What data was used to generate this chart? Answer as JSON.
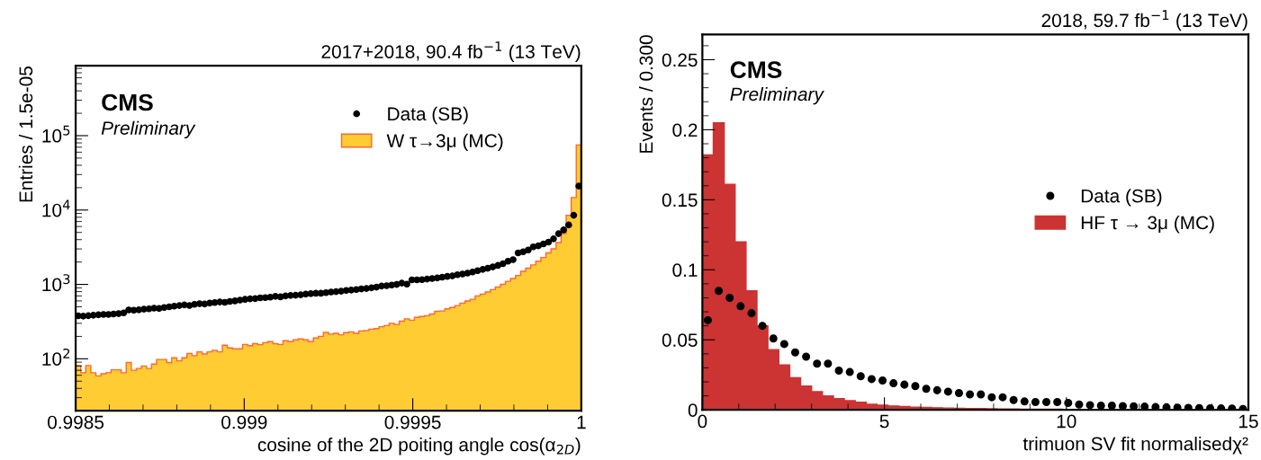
{
  "chart_data": [
    {
      "type": "histogram",
      "title": "2017+2018, 90.4 fb$^{−1}$ (13 TeV)",
      "xlabel": "cosine of the 2D poiting angle cos(α$_{2D}$)",
      "ylabel": "Entries / 1.5e-05",
      "annotations": [
        "CMS",
        "Preliminary"
      ],
      "log": "y",
      "legend": "top right",
      "marker": "circle",
      "xlim": [
        0.9985,
        1
      ],
      "ylim": [
        20,
        870000
      ],
      "xticks": [
        0.9985,
        {
          "value": 0.9986,
          "label": null
        },
        {
          "value": 0.9987,
          "label": null
        },
        {
          "value": 0.9988,
          "label": null
        },
        {
          "value": 0.9989,
          "label": null
        },
        0.999,
        {
          "value": 0.9991,
          "label": null
        },
        {
          "value": 0.9992,
          "label": null
        },
        {
          "value": 0.9993,
          "label": null
        },
        {
          "value": 0.9994,
          "label": null
        },
        0.9995,
        {
          "value": 0.9996,
          "label": null
        },
        {
          "value": 0.9997,
          "label": null
        },
        {
          "value": 0.9998,
          "label": null
        },
        {
          "value": 0.9999,
          "label": null
        },
        1
      ],
      "yticks": [
        {
          "value": 100,
          "label": "10$^{2}$"
        },
        {
          "value": 1000,
          "label": "10$^{3}$"
        },
        {
          "value": 10000,
          "label": "10$^{4}$"
        },
        {
          "value": 100000,
          "label": "10$^{5}$"
        }
      ],
      "series": [
        {
          "name": "W τ→3μ (MC)",
          "color": "#ffcc33",
          "bins": [
            0.9985,
            0.998515,
            0.99853,
            0.998545,
            0.99856,
            0.998575,
            0.99859,
            0.998605,
            0.99862,
            0.998635,
            0.99865,
            0.998665,
            0.99868,
            0.998695,
            0.99871,
            0.998725,
            0.99874,
            0.998755,
            0.99877,
            0.998785,
            0.9988,
            0.998815,
            0.99883,
            0.998845,
            0.99886,
            0.998875,
            0.99889,
            0.998905,
            0.99892,
            0.998935,
            0.99895,
            0.998965,
            0.99898,
            0.998995,
            0.99901,
            0.999025,
            0.99904,
            0.999055,
            0.99907,
            0.999085,
            0.9991,
            0.999115,
            0.99913,
            0.999145,
            0.99916,
            0.999175,
            0.99919,
            0.999205,
            0.99922,
            0.999235,
            0.99925,
            0.999265,
            0.99928,
            0.999295,
            0.99931,
            0.999325,
            0.99934,
            0.999355,
            0.99937,
            0.999385,
            0.9994,
            0.999415,
            0.99943,
            0.999445,
            0.99946,
            0.999475,
            0.99949,
            0.999505,
            0.99952,
            0.999535,
            0.99955,
            0.999565,
            0.99958,
            0.999595,
            0.99961,
            0.999625,
            0.99964,
            0.999655,
            0.99967,
            0.999685,
            0.9997,
            0.999715,
            0.99973,
            0.999745,
            0.99976,
            0.999775,
            0.99979,
            0.999805,
            0.99982,
            0.999835,
            0.99985,
            0.999865,
            0.99988,
            0.999895,
            0.99991,
            0.999925,
            0.99994,
            0.999955,
            0.99997,
            0.999985,
            1
          ],
          "values": [
            81,
            65,
            81,
            65,
            59,
            63,
            65,
            71,
            71,
            65,
            89,
            70,
            74,
            80,
            74,
            85,
            98,
            98,
            89,
            103,
            94,
            103,
            118,
            110,
            124,
            116,
            124,
            130,
            124,
            152,
            140,
            136,
            136,
            156,
            150,
            160,
            155,
            165,
            170,
            160,
            156,
            175,
            170,
            180,
            185,
            180,
            170,
            190,
            200,
            226,
            215,
            220,
            210,
            225,
            230,
            220,
            237,
            240,
            250,
            255,
            270,
            280,
            300,
            290,
            320,
            345,
            330,
            360,
            370,
            380,
            400,
            435,
            440,
            470,
            490,
            520,
            560,
            600,
            630,
            700,
            740,
            790,
            850,
            920,
            1000,
            1100,
            1200,
            1320,
            1500,
            1650,
            1830,
            2050,
            2300,
            2650,
            3000,
            3650,
            4800,
            8500,
            14700,
            75000
          ]
        },
        {
          "name": "Data (SB)",
          "type": "scatter",
          "color": "#000000",
          "x": [
            0.9985075,
            0.9985225,
            0.9985375,
            0.9985525,
            0.9985675,
            0.9985825,
            0.9985975,
            0.9986125,
            0.9986275,
            0.9986425,
            0.9986575,
            0.9986725,
            0.9986875,
            0.9987025,
            0.9987175,
            0.9987325,
            0.9987475,
            0.9987625,
            0.9987775,
            0.9987925,
            0.9988075,
            0.9988225,
            0.9988375,
            0.9988525,
            0.9988675,
            0.9988825,
            0.9988975,
            0.9989125,
            0.9989275,
            0.9989425,
            0.9989575,
            0.9989725,
            0.9989875,
            0.9990025,
            0.9990175,
            0.9990325,
            0.9990475,
            0.9990625,
            0.9990775,
            0.9990925,
            0.9991075,
            0.9991225,
            0.9991375,
            0.9991525,
            0.9991675,
            0.9991825,
            0.9991975,
            0.9992125,
            0.9992275,
            0.9992425,
            0.9992575,
            0.9992725,
            0.9992875,
            0.9993025,
            0.9993175,
            0.9993325,
            0.9993475,
            0.9993625,
            0.9993775,
            0.9993925,
            0.9994075,
            0.9994225,
            0.9994375,
            0.9994525,
            0.9994675,
            0.9994825,
            0.9994975,
            0.9995125,
            0.9995275,
            0.9995425,
            0.9995575,
            0.9995725,
            0.9995875,
            0.9996025,
            0.9996175,
            0.9996325,
            0.9996475,
            0.9996625,
            0.9996775,
            0.9996925,
            0.9997075,
            0.9997225,
            0.9997375,
            0.9997525,
            0.9997675,
            0.9997825,
            0.9997975,
            0.9998125,
            0.9998275,
            0.9998425,
            0.9998575,
            0.9998725,
            0.9998875,
            0.9999025,
            0.9999175,
            0.9999325,
            0.9999475,
            0.9999625,
            0.9999775,
            0.9999925
          ],
          "values": [
            378,
            375,
            380,
            385,
            390,
            395,
            395,
            400,
            405,
            414,
            454,
            450,
            455,
            465,
            470,
            480,
            475,
            490,
            500,
            510,
            520,
            530,
            520,
            540,
            550,
            545,
            560,
            570,
            580,
            575,
            590,
            600,
            615,
            630,
            640,
            645,
            660,
            665,
            675,
            690,
            680,
            700,
            710,
            715,
            725,
            740,
            750,
            760,
            760,
            775,
            790,
            800,
            810,
            830,
            840,
            855,
            870,
            880,
            900,
            920,
            950,
            960,
            980,
            1000,
            1040,
            1010,
            1150,
            1150,
            1160,
            1180,
            1200,
            1220,
            1250,
            1280,
            1300,
            1350,
            1380,
            1420,
            1470,
            1530,
            1590,
            1650,
            1720,
            1800,
            1900,
            2050,
            2150,
            2650,
            2750,
            2900,
            3200,
            3300,
            3500,
            3700,
            4100,
            4800,
            5400,
            6300,
            8500,
            21000
          ]
        }
      ]
    },
    {
      "type": "histogram",
      "title": "2018, 59.7 fb$^{−1}$ (13 TeV)",
      "xlabel": "trimuon SV fit normalisedχ²",
      "ylabel": "Events / 0.300",
      "annotations": [
        "CMS",
        "Preliminary"
      ],
      "legend": "right",
      "marker": "circle",
      "xlim": [
        0,
        15
      ],
      "ylim": [
        0,
        0.268
      ],
      "xticks": [
        0,
        {
          "value": 1,
          "label": null
        },
        {
          "value": 2,
          "label": null
        },
        {
          "value": 3,
          "label": null
        },
        {
          "value": 4,
          "label": null
        },
        5,
        {
          "value": 6,
          "label": null
        },
        {
          "value": 7,
          "label": null
        },
        {
          "value": 8,
          "label": null
        },
        {
          "value": 9,
          "label": null
        },
        10,
        {
          "value": 11,
          "label": null
        },
        {
          "value": 12,
          "label": null
        },
        {
          "value": 13,
          "label": null
        },
        {
          "value": 14,
          "label": null
        },
        15
      ],
      "yticks": [
        0,
        {
          "value": 0.01,
          "label": null
        },
        {
          "value": 0.02,
          "label": null
        },
        {
          "value": 0.03,
          "label": null
        },
        {
          "value": 0.04,
          "label": null
        },
        0.05,
        {
          "value": 0.06,
          "label": null
        },
        {
          "value": 0.07,
          "label": null
        },
        {
          "value": 0.08,
          "label": null
        },
        {
          "value": 0.09,
          "label": null
        },
        0.1,
        {
          "value": 0.11,
          "label": null
        },
        {
          "value": 0.12,
          "label": null
        },
        {
          "value": 0.13,
          "label": null
        },
        {
          "value": 0.14,
          "label": null
        },
        0.15,
        {
          "value": 0.16,
          "label": null
        },
        {
          "value": 0.17,
          "label": null
        },
        {
          "value": 0.18,
          "label": null
        },
        {
          "value": 0.19,
          "label": null
        },
        0.2,
        {
          "value": 0.21,
          "label": null
        },
        {
          "value": 0.22,
          "label": null
        },
        {
          "value": 0.23,
          "label": null
        },
        {
          "value": 0.24,
          "label": null
        },
        0.25,
        {
          "value": 0.26,
          "label": null
        }
      ],
      "series": [
        {
          "name": "HF τ → 3μ (MC)",
          "color": "#cc3333",
          "bins": [
            0,
            0.3,
            0.6,
            0.9,
            1.2,
            1.5,
            1.8,
            2.1,
            2.4,
            2.7,
            3,
            3.3,
            3.6,
            3.9,
            4.2,
            4.5,
            4.8,
            5.1,
            5.4,
            5.7,
            6,
            6.3,
            6.6,
            6.9,
            7.2,
            7.5,
            7.8,
            8.1,
            8.4,
            8.7,
            9,
            9.3,
            9.6,
            9.9,
            10.2,
            10.5,
            10.8,
            11.1,
            11.4,
            11.7,
            12,
            12.3,
            12.6,
            12.9,
            13.2,
            13.5,
            13.8,
            14.1,
            14.4,
            14.7,
            15
          ],
          "values": [
            0.182,
            0.205,
            0.161,
            0.12,
            0.085,
            0.06,
            0.043,
            0.032,
            0.023,
            0.017,
            0.013,
            0.01,
            0.008,
            0.0066,
            0.0055,
            0.004,
            0.0034,
            0.0028,
            0.0024,
            0.002,
            0.0018,
            0.0015,
            0.0013,
            0.0011,
            0.001,
            0.0009,
            0.0008,
            0.0007,
            0.0006,
            0.0005,
            0.0005,
            0.0004,
            0.0004,
            0.0003,
            0.0003,
            0.0003,
            0.0002,
            0.0002,
            0.0002,
            0.0002,
            0.0001,
            0.0001,
            0.0001,
            0.0001,
            0.0001,
            0.0001,
            0.0001,
            0.0001,
            0.0001,
            0.0001
          ]
        },
        {
          "name": "Data (SB)",
          "type": "scatter",
          "color": "#000000",
          "x": [
            0.15,
            0.45,
            0.75,
            1.05,
            1.35,
            1.65,
            1.95,
            2.25,
            2.55,
            2.85,
            3.15,
            3.45,
            3.75,
            4.05,
            4.35,
            4.65,
            4.95,
            5.25,
            5.55,
            5.85,
            6.15,
            6.45,
            6.75,
            7.05,
            7.35,
            7.65,
            7.95,
            8.25,
            8.55,
            8.85,
            9.15,
            9.45,
            9.75,
            10.05,
            10.35,
            10.65,
            10.95,
            11.25,
            11.55,
            11.85,
            12.15,
            12.45,
            12.75,
            13.05,
            13.35,
            13.65,
            13.95,
            14.25,
            14.55,
            14.85
          ],
          "values": [
            0.064,
            0.085,
            0.08,
            0.074,
            0.069,
            0.06,
            0.051,
            0.047,
            0.041,
            0.038,
            0.033,
            0.033,
            0.028,
            0.027,
            0.024,
            0.022,
            0.021,
            0.019,
            0.018,
            0.017,
            0.015,
            0.014,
            0.013,
            0.012,
            0.011,
            0.011,
            0.009,
            0.009,
            0.007,
            0.006,
            0.0056,
            0.0056,
            0.0056,
            0.0049,
            0.0038,
            0.0034,
            0.003,
            0.003,
            0.0027,
            0.0025,
            0.0023,
            0.002,
            0.0018,
            0.0016,
            0.0014,
            0.0013,
            0.0011,
            0.001,
            0.0009,
            0.0006
          ]
        }
      ]
    }
  ]
}
